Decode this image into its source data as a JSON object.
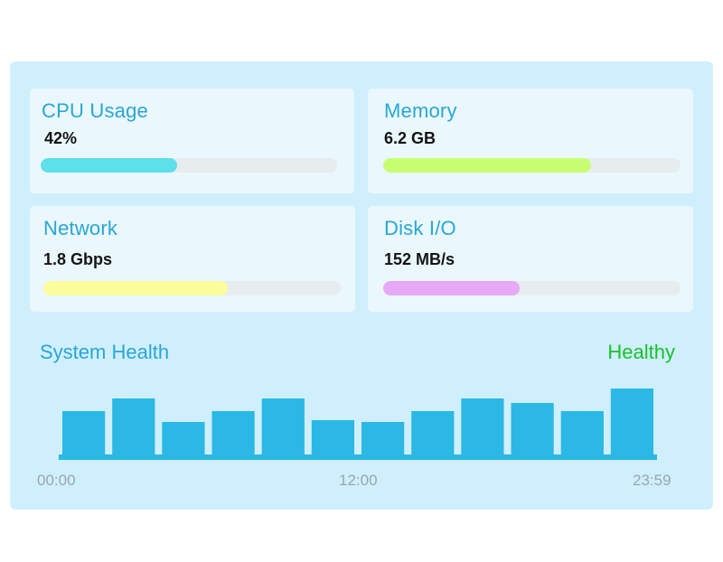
{
  "metrics": [
    {
      "title": "CPU Usage",
      "value": "42%",
      "level": 0.46,
      "color": "#5ce0ea"
    },
    {
      "title": "Memory",
      "value": "6.2 GB",
      "level": 0.7,
      "color": "#c6fe70"
    },
    {
      "title": "Network",
      "value": "1.8 Gbps",
      "level": 0.62,
      "color": "#fbfd9d"
    },
    {
      "title": "Disk I/O",
      "value": "152 MB/s",
      "level": 0.46,
      "color": "#e7a8f5"
    }
  ],
  "health": {
    "title": "System Health",
    "status": "Healthy",
    "status_color": "#16c22a"
  },
  "chart_data": {
    "type": "bar",
    "values": [
      48,
      62,
      36,
      48,
      62,
      38,
      36,
      48,
      62,
      57,
      48,
      73
    ],
    "x_tick_labels": [
      "00:00",
      "12:00",
      "23:59"
    ],
    "bar_color": "#2bb8e5",
    "grid": false
  }
}
